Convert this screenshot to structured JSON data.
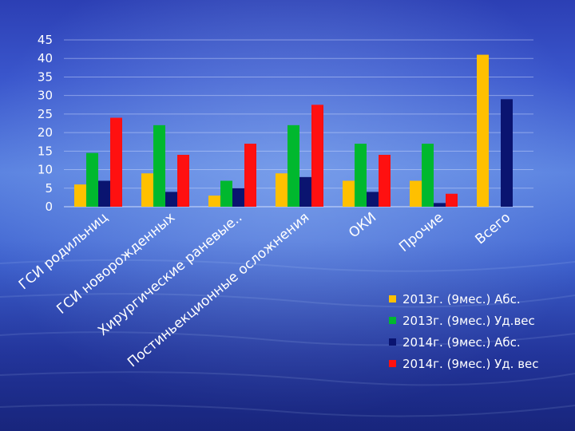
{
  "chart_data": {
    "type": "bar",
    "title": "",
    "xlabel": "",
    "ylabel": "",
    "ylim": [
      0,
      45
    ],
    "yticks": [
      0,
      5,
      10,
      15,
      20,
      25,
      30,
      35,
      40,
      45
    ],
    "grid": true,
    "legend_position": "bottom-right",
    "categories": [
      "ГСИ родильниц",
      "ГСИ новорожденных",
      "Хирургические раневые..",
      "Постиньекционные осложнения",
      "ОКИ",
      "Прочие",
      "Всего"
    ],
    "series": [
      {
        "name": "2013г. (9мес.) Абс.",
        "color": "#ffc000",
        "values": [
          6,
          9,
          3,
          9,
          7,
          7,
          41
        ]
      },
      {
        "name": "2013г. (9мес.) Уд.вес",
        "color": "#00b82e",
        "values": [
          14.5,
          22,
          7,
          22,
          17,
          17,
          null
        ]
      },
      {
        "name": "2014г. (9мес.) Абс.",
        "color": "#0a1470",
        "values": [
          7,
          4,
          5,
          8,
          4,
          1,
          29
        ]
      },
      {
        "name": "2014г. (9мес.) Уд. вес",
        "color": "#ff1010",
        "values": [
          24,
          14,
          17,
          27.5,
          14,
          3.5,
          null
        ]
      }
    ]
  }
}
